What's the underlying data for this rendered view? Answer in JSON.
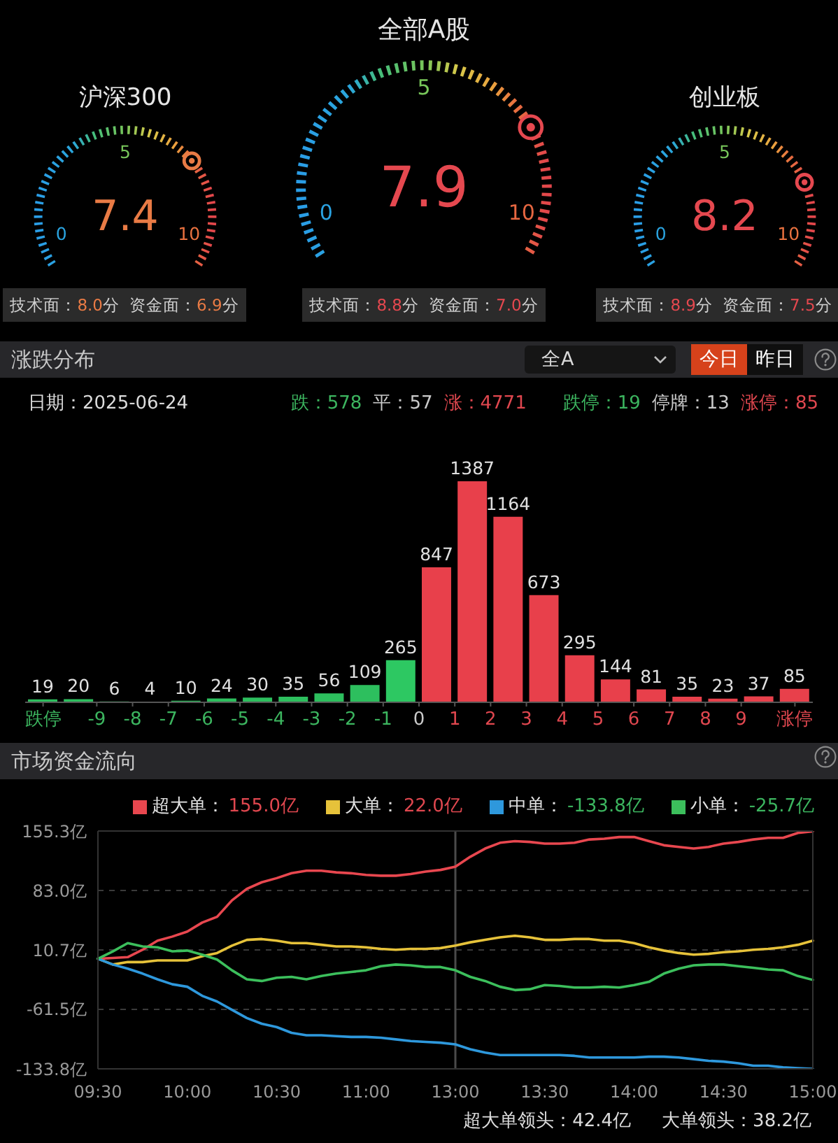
{
  "chart_data": [
    {
      "type": "other",
      "title": "沪深300",
      "values": [
        7.4
      ],
      "color": "#e97b45",
      "data_labels": true,
      "annotations": [
        "0",
        "5",
        "10",
        "技术面：8.0分",
        "资金面：6.9分"
      ]
    },
    {
      "type": "other",
      "title": "全部A股",
      "values": [
        7.9
      ],
      "color": "#e5484f",
      "data_labels": true,
      "annotations": [
        "0",
        "5",
        "10",
        "技术面：8.8分",
        "资金面：7.0分"
      ]
    },
    {
      "type": "other",
      "title": "创业板",
      "values": [
        8.2
      ],
      "color": "#e5484f",
      "data_labels": true,
      "annotations": [
        "0",
        "5",
        "10",
        "技术面：8.9分",
        "资金面：7.5分"
      ]
    },
    {
      "type": "bar",
      "title": "涨跌分布",
      "subtitle": "日期：2025-06-24",
      "x": [
        -10.5,
        -9.5,
        -8.5,
        -7.5,
        -6.5,
        -5.5,
        -4.5,
        -3.5,
        -2.5,
        -1.5,
        -0.5,
        0.5,
        1.5,
        2.5,
        3.5,
        4.5,
        5.5,
        6.5,
        7.5,
        8.5,
        9.5,
        10.5
      ],
      "values": [
        19,
        20,
        6,
        4,
        10,
        24,
        30,
        35,
        56,
        109,
        265,
        847,
        1387,
        1164,
        673,
        295,
        144,
        81,
        35,
        23,
        37,
        85
      ],
      "colors": [
        "#2dbf5e",
        "#2dbf5e",
        "#2dbf5e",
        "#2dbf5e",
        "#2dbf5e",
        "#2dbf5e",
        "#2dbf5e",
        "#2dbf5e",
        "#2dbf5e",
        "#2dbf5e",
        "#2dc862",
        "#e8404b",
        "#e8404b",
        "#e8404b",
        "#e8404b",
        "#e8404b",
        "#e8404b",
        "#e8404b",
        "#e8404b",
        "#e8404b",
        "#e8404b",
        "#e8404b"
      ],
      "xlim": [
        -11,
        11
      ],
      "xticks": [
        {
          "value": -10.5,
          "label": "跌停"
        },
        -9,
        -8,
        -7,
        -6,
        -5,
        -4,
        -3,
        -2,
        -1,
        0,
        1,
        2,
        3,
        4,
        5,
        6,
        7,
        8,
        9,
        {
          "value": 10.5,
          "label": "涨停"
        }
      ],
      "data_labels": true,
      "tick_labels": "x",
      "annotations": [
        "全A",
        "今日",
        "昨日",
        "跌：578",
        "平：57",
        "涨：4771",
        "跌停：19",
        "停牌：13",
        "涨停：85"
      ]
    },
    {
      "type": "line",
      "title": "市场资金流向",
      "categories": [
        "09:30",
        null,
        null,
        null,
        null,
        null,
        "10:00",
        null,
        null,
        null,
        null,
        null,
        "10:30",
        null,
        null,
        null,
        null,
        null,
        "11:00",
        null,
        null,
        null,
        null,
        null,
        "13:00",
        null,
        null,
        null,
        null,
        null,
        "13:30",
        null,
        null,
        null,
        null,
        null,
        "14:00",
        null,
        null,
        null,
        null,
        null,
        "14:30",
        null,
        null,
        null,
        null,
        null,
        "15:00"
      ],
      "ylim": [
        -133.8,
        155.3
      ],
      "yticks": [
        {
          "value": 155.3,
          "label": "155.3亿"
        },
        {
          "value": 83.0,
          "label": "83.0亿"
        },
        {
          "value": 10.7,
          "label": "10.7亿"
        },
        {
          "value": -61.5,
          "label": "-61.5亿"
        },
        {
          "value": -133.8,
          "label": "-133.8亿"
        }
      ],
      "grid": "y",
      "legend": "top right",
      "ref_lines": [
        {
          "axis": "x",
          "value": "13:00"
        }
      ],
      "series": [
        {
          "name": "超大单：155.0亿",
          "color": "#e8474f",
          "values": [
            0,
            1,
            2,
            11,
            22,
            27,
            33,
            44,
            51,
            71,
            85,
            93,
            98,
            104,
            107,
            107,
            105,
            104,
            102,
            101,
            101,
            103,
            106,
            108,
            112,
            124,
            134,
            141,
            143,
            142,
            140,
            140,
            141,
            145,
            146,
            148,
            148,
            143,
            138,
            136,
            134,
            136,
            140,
            142,
            145,
            147,
            147,
            153,
            155.0
          ]
        },
        {
          "name": "大单：22.0亿",
          "color": "#e6c23a",
          "values": [
            0,
            -7,
            -4,
            -4,
            -2,
            -2,
            -2,
            3,
            7,
            16,
            23,
            24,
            22,
            19,
            19,
            17,
            15,
            15,
            14,
            12,
            11,
            12,
            12,
            13,
            16,
            20,
            23,
            26,
            28,
            26,
            23,
            23,
            24,
            24,
            22,
            22,
            19,
            14,
            10,
            7,
            5,
            6,
            8,
            9,
            11,
            12,
            14,
            17,
            22.0
          ]
        },
        {
          "name": "中单：-133.8亿",
          "color": "#2e98dc",
          "values": [
            0,
            -7,
            -12,
            -18,
            -25,
            -31,
            -34,
            -45,
            -52,
            -62,
            -72,
            -79,
            -83,
            -90,
            -93,
            -93,
            -94,
            -95,
            -95,
            -96,
            -98,
            -100,
            -101,
            -102,
            -104,
            -110,
            -114,
            -117,
            -117,
            -117,
            -117,
            -117,
            -118,
            -120,
            -120,
            -120,
            -120,
            -119,
            -119,
            -120,
            -122,
            -124,
            -125,
            -127,
            -130,
            -130,
            -132,
            -133,
            -133.8
          ]
        },
        {
          "name": "小单：-25.7亿",
          "color": "#3cbf5c",
          "values": [
            0,
            9,
            19,
            15,
            14,
            9,
            10,
            5,
            -1,
            -14,
            -25,
            -27,
            -23,
            -22,
            -25,
            -21,
            -18,
            -16,
            -14,
            -9,
            -7,
            -8,
            -10,
            -10,
            -14,
            -22,
            -27,
            -34,
            -38,
            -37,
            -32,
            -33,
            -35,
            -35,
            -34,
            -35,
            -32,
            -28,
            -18,
            -12,
            -8,
            -7,
            -7,
            -9,
            -11,
            -13,
            -14,
            -21,
            -25.7
          ]
        }
      ],
      "annotations": [
        "超大单领头：42.4亿",
        "大单领头：38.2亿"
      ]
    }
  ]
}
